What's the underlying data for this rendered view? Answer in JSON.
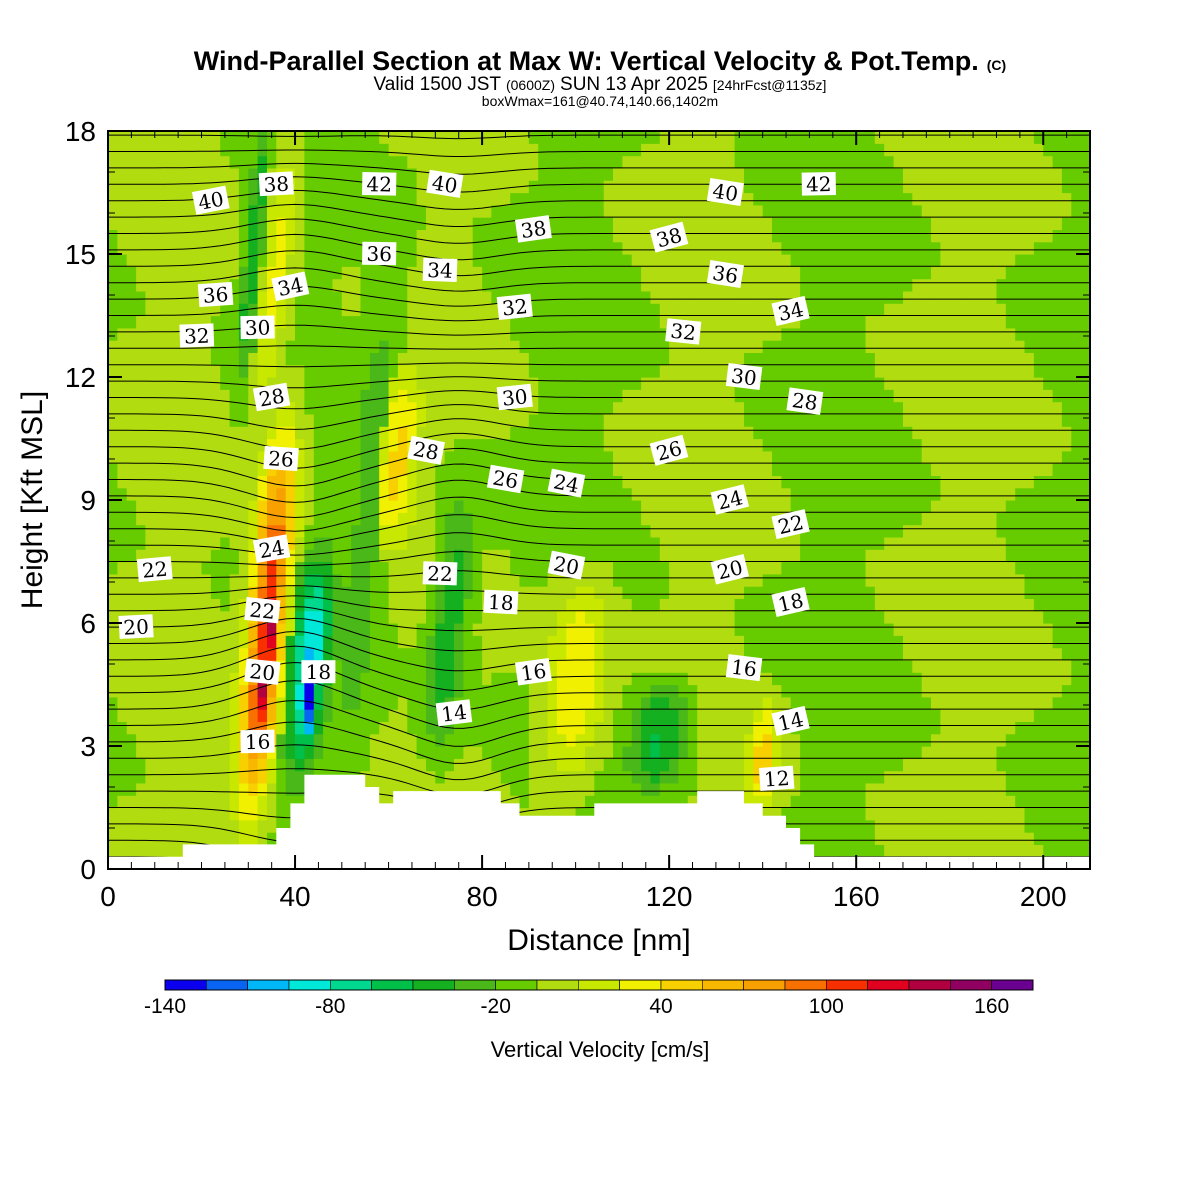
{
  "title": {
    "main": "Wind-Parallel Section at Max W: Vertical Velocity & Pot.Temp.",
    "copyright": "(C)",
    "valid_prefix": "Valid 1500 JST",
    "valid_utc": "(0600Z)",
    "valid_date": "SUN 13 Apr 2025",
    "forecast_tag": "[24hrFcst@1135z]",
    "box_info": "boxWmax=161@40.74,140.66,1402m"
  },
  "colorbar": {
    "title": "Vertical Velocity [cm/s]",
    "tick_labels": [
      "-140",
      "-80",
      "-20",
      "40",
      "100",
      "160"
    ],
    "tick_values": [
      -140,
      -80,
      -20,
      40,
      100,
      160
    ],
    "levels": [
      -140,
      -125,
      -110,
      -95,
      -80,
      -65,
      -50,
      -35,
      -20,
      -5,
      10,
      25,
      40,
      55,
      70,
      85,
      100,
      115,
      130,
      145,
      160,
      175
    ],
    "colors": [
      "#0a00ee",
      "#0a64f2",
      "#00b8f8",
      "#00e8d8",
      "#00d890",
      "#00c04a",
      "#14b020",
      "#4ab818",
      "#66cc00",
      "#b0dc10",
      "#c8e800",
      "#f0f000",
      "#f8d000",
      "#f8b800",
      "#f8a000",
      "#f87000",
      "#f83000",
      "#e00020",
      "#b00040",
      "#900060",
      "#6a0090"
    ]
  },
  "chart_data": {
    "type": "heatmap",
    "title": "Wind-Parallel Section at Max W: Vertical Velocity & Pot.Temp.",
    "xlabel": "Distance [nm]",
    "ylabel": "Height [Kft MSL]",
    "xlim": [
      0,
      210
    ],
    "ylim": [
      0,
      18
    ],
    "x_ticks": [
      0,
      40,
      80,
      120,
      160,
      200
    ],
    "x_tick_labels": [
      "0",
      "40",
      "80",
      "120",
      "160",
      "200"
    ],
    "y_ticks": [
      0,
      3,
      6,
      9,
      12,
      15,
      18
    ],
    "y_tick_labels": [
      "0",
      "3",
      "6",
      "9",
      "12",
      "15",
      "18"
    ],
    "background_value_cm_s": -5,
    "vertical_velocity_features": [
      {
        "x_center": 34,
        "z_bottom": 1.5,
        "z_top": 10.5,
        "half_width": 4,
        "value": 110
      },
      {
        "x_center": 34,
        "z_bottom": 3.0,
        "z_top": 7.5,
        "half_width": 2,
        "value": 150
      },
      {
        "x_center": 43,
        "z_bottom": 2.5,
        "z_top": 7.5,
        "half_width": 4,
        "value": -90
      },
      {
        "x_center": 43,
        "z_bottom": 3.0,
        "z_top": 5.5,
        "half_width": 2,
        "value": -135
      },
      {
        "x_center": 56,
        "z_bottom": 3.0,
        "z_top": 15.0,
        "half_width": 4,
        "value": -30
      },
      {
        "x_center": 62,
        "z_bottom": 8.0,
        "z_top": 12.0,
        "half_width": 4,
        "value": 45
      },
      {
        "x_center": 73,
        "z_bottom": 3.0,
        "z_top": 9.0,
        "half_width": 4,
        "value": -50
      },
      {
        "x_center": 100,
        "z_bottom": 2.0,
        "z_top": 7.0,
        "half_width": 6,
        "value": 40
      },
      {
        "x_center": 118,
        "z_bottom": 2.0,
        "z_top": 4.5,
        "half_width": 6,
        "value": -55
      },
      {
        "x_center": 140,
        "z_bottom": 1.5,
        "z_top": 4.0,
        "half_width": 3,
        "value": 45
      },
      {
        "x_center": 36,
        "z_bottom": 11.0,
        "z_top": 18.0,
        "half_width": 3,
        "value": 30
      },
      {
        "x_center": 31,
        "z_bottom": 12.0,
        "z_top": 18.0,
        "half_width": 2,
        "value": -45
      }
    ],
    "terrain_nm_kft": [
      [
        0,
        0.3
      ],
      [
        16,
        0.3
      ],
      [
        16,
        0.6
      ],
      [
        36,
        0.6
      ],
      [
        36,
        1.0
      ],
      [
        39,
        1.0
      ],
      [
        39,
        1.6
      ],
      [
        42,
        1.6
      ],
      [
        42,
        2.3
      ],
      [
        55,
        2.3
      ],
      [
        55,
        2.0
      ],
      [
        58,
        2.0
      ],
      [
        58,
        1.6
      ],
      [
        61,
        1.6
      ],
      [
        61,
        1.9
      ],
      [
        84,
        1.9
      ],
      [
        84,
        1.6
      ],
      [
        88,
        1.6
      ],
      [
        88,
        1.3
      ],
      [
        104,
        1.3
      ],
      [
        104,
        1.6
      ],
      [
        126,
        1.6
      ],
      [
        126,
        1.9
      ],
      [
        136,
        1.9
      ],
      [
        136,
        1.6
      ],
      [
        140,
        1.6
      ],
      [
        140,
        1.3
      ],
      [
        145,
        1.3
      ],
      [
        145,
        1.0
      ],
      [
        148,
        1.0
      ],
      [
        148,
        0.6
      ],
      [
        151,
        0.6
      ],
      [
        151,
        0.3
      ],
      [
        210,
        0.3
      ]
    ],
    "potential_temperature_labels": [
      {
        "text": "38",
        "x": 36,
        "z": 16.7
      },
      {
        "text": "40",
        "x": 22,
        "z": 16.3
      },
      {
        "text": "42",
        "x": 58,
        "z": 16.7
      },
      {
        "text": "40",
        "x": 72,
        "z": 16.7
      },
      {
        "text": "40",
        "x": 132,
        "z": 16.5
      },
      {
        "text": "42",
        "x": 152,
        "z": 16.7
      },
      {
        "text": "38",
        "x": 91,
        "z": 15.6
      },
      {
        "text": "38",
        "x": 120,
        "z": 15.4
      },
      {
        "text": "36",
        "x": 23,
        "z": 14.0
      },
      {
        "text": "34",
        "x": 39,
        "z": 14.2
      },
      {
        "text": "36",
        "x": 58,
        "z": 15.0
      },
      {
        "text": "34",
        "x": 71,
        "z": 14.6
      },
      {
        "text": "36",
        "x": 132,
        "z": 14.5
      },
      {
        "text": "34",
        "x": 146,
        "z": 13.6
      },
      {
        "text": "32",
        "x": 19,
        "z": 13.0
      },
      {
        "text": "30",
        "x": 32,
        "z": 13.2
      },
      {
        "text": "32",
        "x": 87,
        "z": 13.7
      },
      {
        "text": "32",
        "x": 123,
        "z": 13.1
      },
      {
        "text": "30",
        "x": 136,
        "z": 12.0
      },
      {
        "text": "28",
        "x": 149,
        "z": 11.4
      },
      {
        "text": "28",
        "x": 35,
        "z": 11.5
      },
      {
        "text": "30",
        "x": 87,
        "z": 11.5
      },
      {
        "text": "28",
        "x": 68,
        "z": 10.2
      },
      {
        "text": "26",
        "x": 37,
        "z": 10.0
      },
      {
        "text": "26",
        "x": 120,
        "z": 10.2
      },
      {
        "text": "26",
        "x": 85,
        "z": 9.5
      },
      {
        "text": "24",
        "x": 98,
        "z": 9.4
      },
      {
        "text": "24",
        "x": 133,
        "z": 9.0
      },
      {
        "text": "22",
        "x": 146,
        "z": 8.4
      },
      {
        "text": "24",
        "x": 35,
        "z": 7.8
      },
      {
        "text": "22",
        "x": 10,
        "z": 7.3
      },
      {
        "text": "22",
        "x": 71,
        "z": 7.2
      },
      {
        "text": "20",
        "x": 98,
        "z": 7.4
      },
      {
        "text": "20",
        "x": 133,
        "z": 7.3
      },
      {
        "text": "22",
        "x": 33,
        "z": 6.3
      },
      {
        "text": "18",
        "x": 84,
        "z": 6.5
      },
      {
        "text": "18",
        "x": 146,
        "z": 6.5
      },
      {
        "text": "20",
        "x": 6,
        "z": 5.9
      },
      {
        "text": "20",
        "x": 33,
        "z": 4.8
      },
      {
        "text": "18",
        "x": 45,
        "z": 4.8
      },
      {
        "text": "16",
        "x": 91,
        "z": 4.8
      },
      {
        "text": "16",
        "x": 136,
        "z": 4.9
      },
      {
        "text": "14",
        "x": 74,
        "z": 3.8
      },
      {
        "text": "14",
        "x": 146,
        "z": 3.6
      },
      {
        "text": "16",
        "x": 32,
        "z": 3.1
      },
      {
        "text": "12",
        "x": 143,
        "z": 2.2
      }
    ]
  }
}
